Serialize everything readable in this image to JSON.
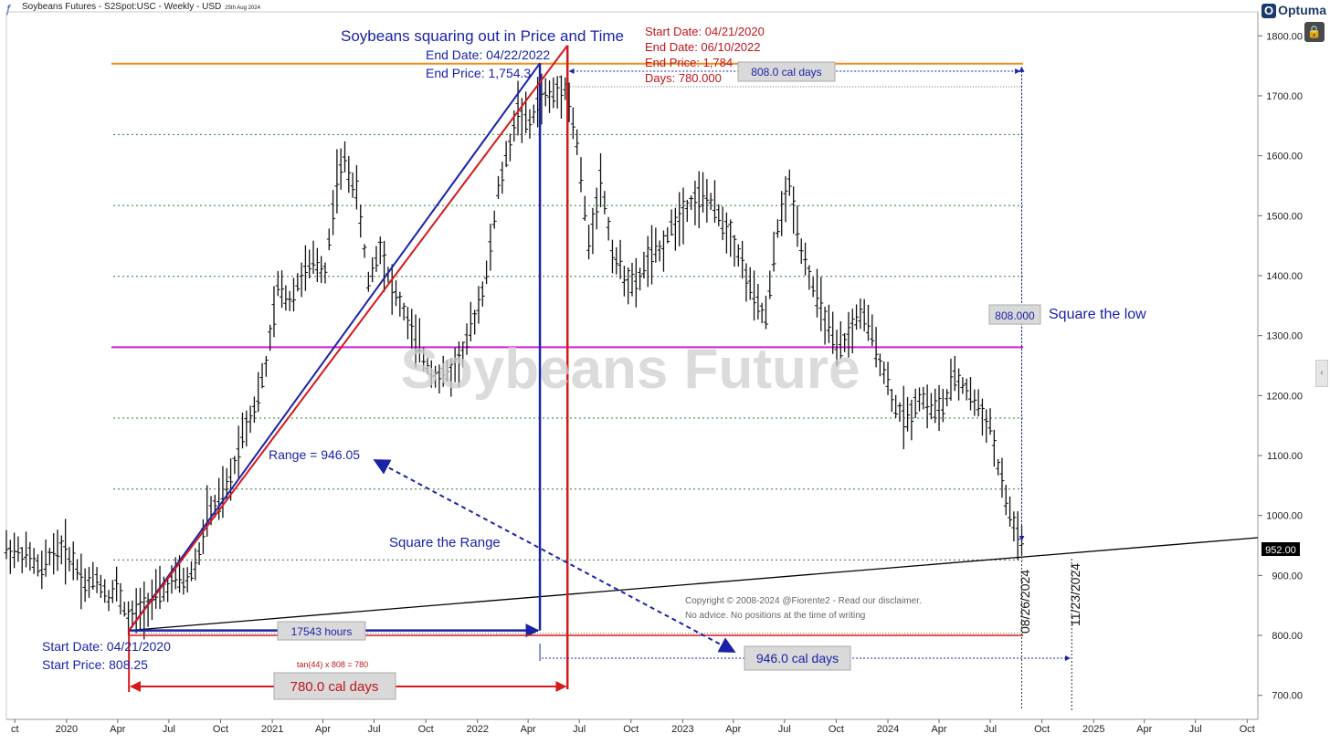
{
  "header": {
    "title": "Soybeans Futures - S2Spot:USC - Weekly - USD",
    "date": "25th Aug 2024",
    "brand": "Optuma",
    "logo_icon": "optuma-logo-icon",
    "lock_icon": "lock-icon"
  },
  "chart_data": {
    "type": "candlestick",
    "title": "Soybeans squaring out in Price and Time",
    "watermark": "Soybeans Future",
    "xlabel": "",
    "ylabel": "",
    "ylim": [
      660,
      1840
    ],
    "y_ticks": [
      700,
      800,
      900,
      1000,
      1100,
      1200,
      1300,
      1400,
      1500,
      1600,
      1700,
      1800
    ],
    "y_tick_labels": [
      "700.00",
      "800.00",
      "900.00",
      "1000.00",
      "1100.00",
      "1200.00",
      "1300.00",
      "1400.00",
      "1500.00",
      "1600.00",
      "1700.00",
      "1800.00"
    ],
    "x_range": [
      "2019-09-16",
      "2025-10-20"
    ],
    "x_ticks": [
      {
        "date": "2019-10-01",
        "label": "ct"
      },
      {
        "date": "2020-01-01",
        "label": "2020"
      },
      {
        "date": "2020-04-01",
        "label": "Apr"
      },
      {
        "date": "2020-07-01",
        "label": "Jul"
      },
      {
        "date": "2020-10-01",
        "label": "Oct"
      },
      {
        "date": "2021-01-01",
        "label": "2021"
      },
      {
        "date": "2021-04-01",
        "label": "Apr"
      },
      {
        "date": "2021-07-01",
        "label": "Jul"
      },
      {
        "date": "2021-10-01",
        "label": "Oct"
      },
      {
        "date": "2022-01-01",
        "label": "2022"
      },
      {
        "date": "2022-04-01",
        "label": "Apr"
      },
      {
        "date": "2022-07-01",
        "label": "Jul"
      },
      {
        "date": "2022-10-01",
        "label": "Oct"
      },
      {
        "date": "2023-01-01",
        "label": "2023"
      },
      {
        "date": "2023-04-01",
        "label": "Apr"
      },
      {
        "date": "2023-07-01",
        "label": "Jul"
      },
      {
        "date": "2023-10-01",
        "label": "Oct"
      },
      {
        "date": "2024-01-01",
        "label": "2024"
      },
      {
        "date": "2024-04-01",
        "label": "Apr"
      },
      {
        "date": "2024-07-01",
        "label": "Jul"
      },
      {
        "date": "2024-10-01",
        "label": "Oct"
      },
      {
        "date": "2025-01-01",
        "label": "2025"
      },
      {
        "date": "2025-04-01",
        "label": "Apr"
      },
      {
        "date": "2025-07-01",
        "label": "Jul"
      },
      {
        "date": "2025-10-01",
        "label": "Oct"
      }
    ],
    "price_series": [
      [
        "2019-09-16",
        945
      ],
      [
        "2019-10-07",
        938
      ],
      [
        "2019-10-28",
        930
      ],
      [
        "2019-11-18",
        905
      ],
      [
        "2019-12-02",
        935
      ],
      [
        "2019-12-23",
        945
      ],
      [
        "2020-01-13",
        925
      ],
      [
        "2020-02-03",
        885
      ],
      [
        "2020-02-24",
        895
      ],
      [
        "2020-03-16",
        865
      ],
      [
        "2020-03-30",
        880
      ],
      [
        "2020-04-21",
        825
      ],
      [
        "2020-05-11",
        845
      ],
      [
        "2020-06-01",
        860
      ],
      [
        "2020-06-22",
        875
      ],
      [
        "2020-07-13",
        895
      ],
      [
        "2020-08-03",
        890
      ],
      [
        "2020-08-24",
        935
      ],
      [
        "2020-09-07",
        1000
      ],
      [
        "2020-09-28",
        1020
      ],
      [
        "2020-10-19",
        1060
      ],
      [
        "2020-11-09",
        1140
      ],
      [
        "2020-11-30",
        1180
      ],
      [
        "2020-12-21",
        1250
      ],
      [
        "2021-01-11",
        1380
      ],
      [
        "2021-02-01",
        1360
      ],
      [
        "2021-02-22",
        1400
      ],
      [
        "2021-03-15",
        1420
      ],
      [
        "2021-04-05",
        1410
      ],
      [
        "2021-04-26",
        1560
      ],
      [
        "2021-05-10",
        1590
      ],
      [
        "2021-05-31",
        1540
      ],
      [
        "2021-06-21",
        1390
      ],
      [
        "2021-07-12",
        1450
      ],
      [
        "2021-08-02",
        1380
      ],
      [
        "2021-08-23",
        1340
      ],
      [
        "2021-09-13",
        1290
      ],
      [
        "2021-10-04",
        1250
      ],
      [
        "2021-10-25",
        1230
      ],
      [
        "2021-11-15",
        1240
      ],
      [
        "2021-12-06",
        1270
      ],
      [
        "2021-12-27",
        1330
      ],
      [
        "2022-01-17",
        1400
      ],
      [
        "2022-02-07",
        1540
      ],
      [
        "2022-02-28",
        1620
      ],
      [
        "2022-03-14",
        1680
      ],
      [
        "2022-04-04",
        1650
      ],
      [
        "2022-04-22",
        1700
      ],
      [
        "2022-05-16",
        1700
      ],
      [
        "2022-06-06",
        1720
      ],
      [
        "2022-06-27",
        1620
      ],
      [
        "2022-07-18",
        1450
      ],
      [
        "2022-08-08",
        1560
      ],
      [
        "2022-08-29",
        1440
      ],
      [
        "2022-09-19",
        1400
      ],
      [
        "2022-10-10",
        1380
      ],
      [
        "2022-10-31",
        1430
      ],
      [
        "2022-11-21",
        1440
      ],
      [
        "2022-12-12",
        1480
      ],
      [
        "2023-01-02",
        1510
      ],
      [
        "2023-01-23",
        1530
      ],
      [
        "2023-02-13",
        1530
      ],
      [
        "2023-03-06",
        1500
      ],
      [
        "2023-03-27",
        1470
      ],
      [
        "2023-04-17",
        1420
      ],
      [
        "2023-05-08",
        1360
      ],
      [
        "2023-05-29",
        1330
      ],
      [
        "2023-06-19",
        1480
      ],
      [
        "2023-07-10",
        1550
      ],
      [
        "2023-07-31",
        1450
      ],
      [
        "2023-08-21",
        1380
      ],
      [
        "2023-09-11",
        1330
      ],
      [
        "2023-10-02",
        1270
      ],
      [
        "2023-10-23",
        1300
      ],
      [
        "2023-11-13",
        1340
      ],
      [
        "2023-12-04",
        1300
      ],
      [
        "2023-12-25",
        1240
      ],
      [
        "2024-01-15",
        1180
      ],
      [
        "2024-02-05",
        1160
      ],
      [
        "2024-02-26",
        1200
      ],
      [
        "2024-03-18",
        1180
      ],
      [
        "2024-04-08",
        1180
      ],
      [
        "2024-04-29",
        1230
      ],
      [
        "2024-05-20",
        1210
      ],
      [
        "2024-06-10",
        1180
      ],
      [
        "2024-07-01",
        1150
      ],
      [
        "2024-07-15",
        1080
      ],
      [
        "2024-08-05",
        1000
      ],
      [
        "2024-08-26",
        952
      ]
    ],
    "last_price": 952,
    "last_price_label": "952.00",
    "gann_levels": [
      925.9,
      1044.1,
      1162.4,
      1280.6,
      1398.9,
      1517.1,
      1635.4,
      1753.6
    ],
    "reference_lines": {
      "orange": 1753.6,
      "magenta": 1280.6,
      "colors": {
        "orange": "#f28c1a",
        "magenta": "#d21ed2",
        "grid": "#2e7d32"
      }
    },
    "trendline": {
      "from": [
        "2020-04-21",
        808.25
      ],
      "to": [
        "2025-10-20",
        963
      ]
    },
    "projections": [
      {
        "name": "blue",
        "from": [
          "2020-04-21",
          808.25
        ],
        "to": [
          "2022-04-22",
          1754.3
        ],
        "color": "#1a23a8"
      },
      {
        "name": "red",
        "from": [
          "2020-04-21",
          808.25
        ],
        "to": [
          "2022-06-10",
          1784
        ],
        "color": "#d41a1a"
      }
    ],
    "annotations": {
      "start_date": "Start Date: 04/21/2020",
      "start_price": "Start Price: 808.25",
      "end_date_blue": "End Date: 04/22/2022",
      "end_price_blue": "End Price: 1,754.3",
      "red_start_date": "Start Date: 04/21/2020",
      "red_end_date": "End Date: 06/10/2022",
      "red_end_price": "End Price: 1,784",
      "red_days": "Days: 780.000",
      "range_label": "Range = 946.05",
      "square_range": "Square the Range",
      "square_low": "Square the low",
      "box_808": "808.000",
      "box_hours": "17543 hours",
      "box_780": "780.0 cal days",
      "box_808_days": "808.0 cal days",
      "box_946_days": "946.0 cal days",
      "tan_label": "tan(44) x 808 = 780",
      "date_v1": "08/26/2024",
      "date_v2": "11/23/2024",
      "copyright_1": "Copyright © 2008-2024 @Fiorente2 -  Read our disclaimer.",
      "copyright_2": "No advice. No positions at the time of writing"
    }
  }
}
